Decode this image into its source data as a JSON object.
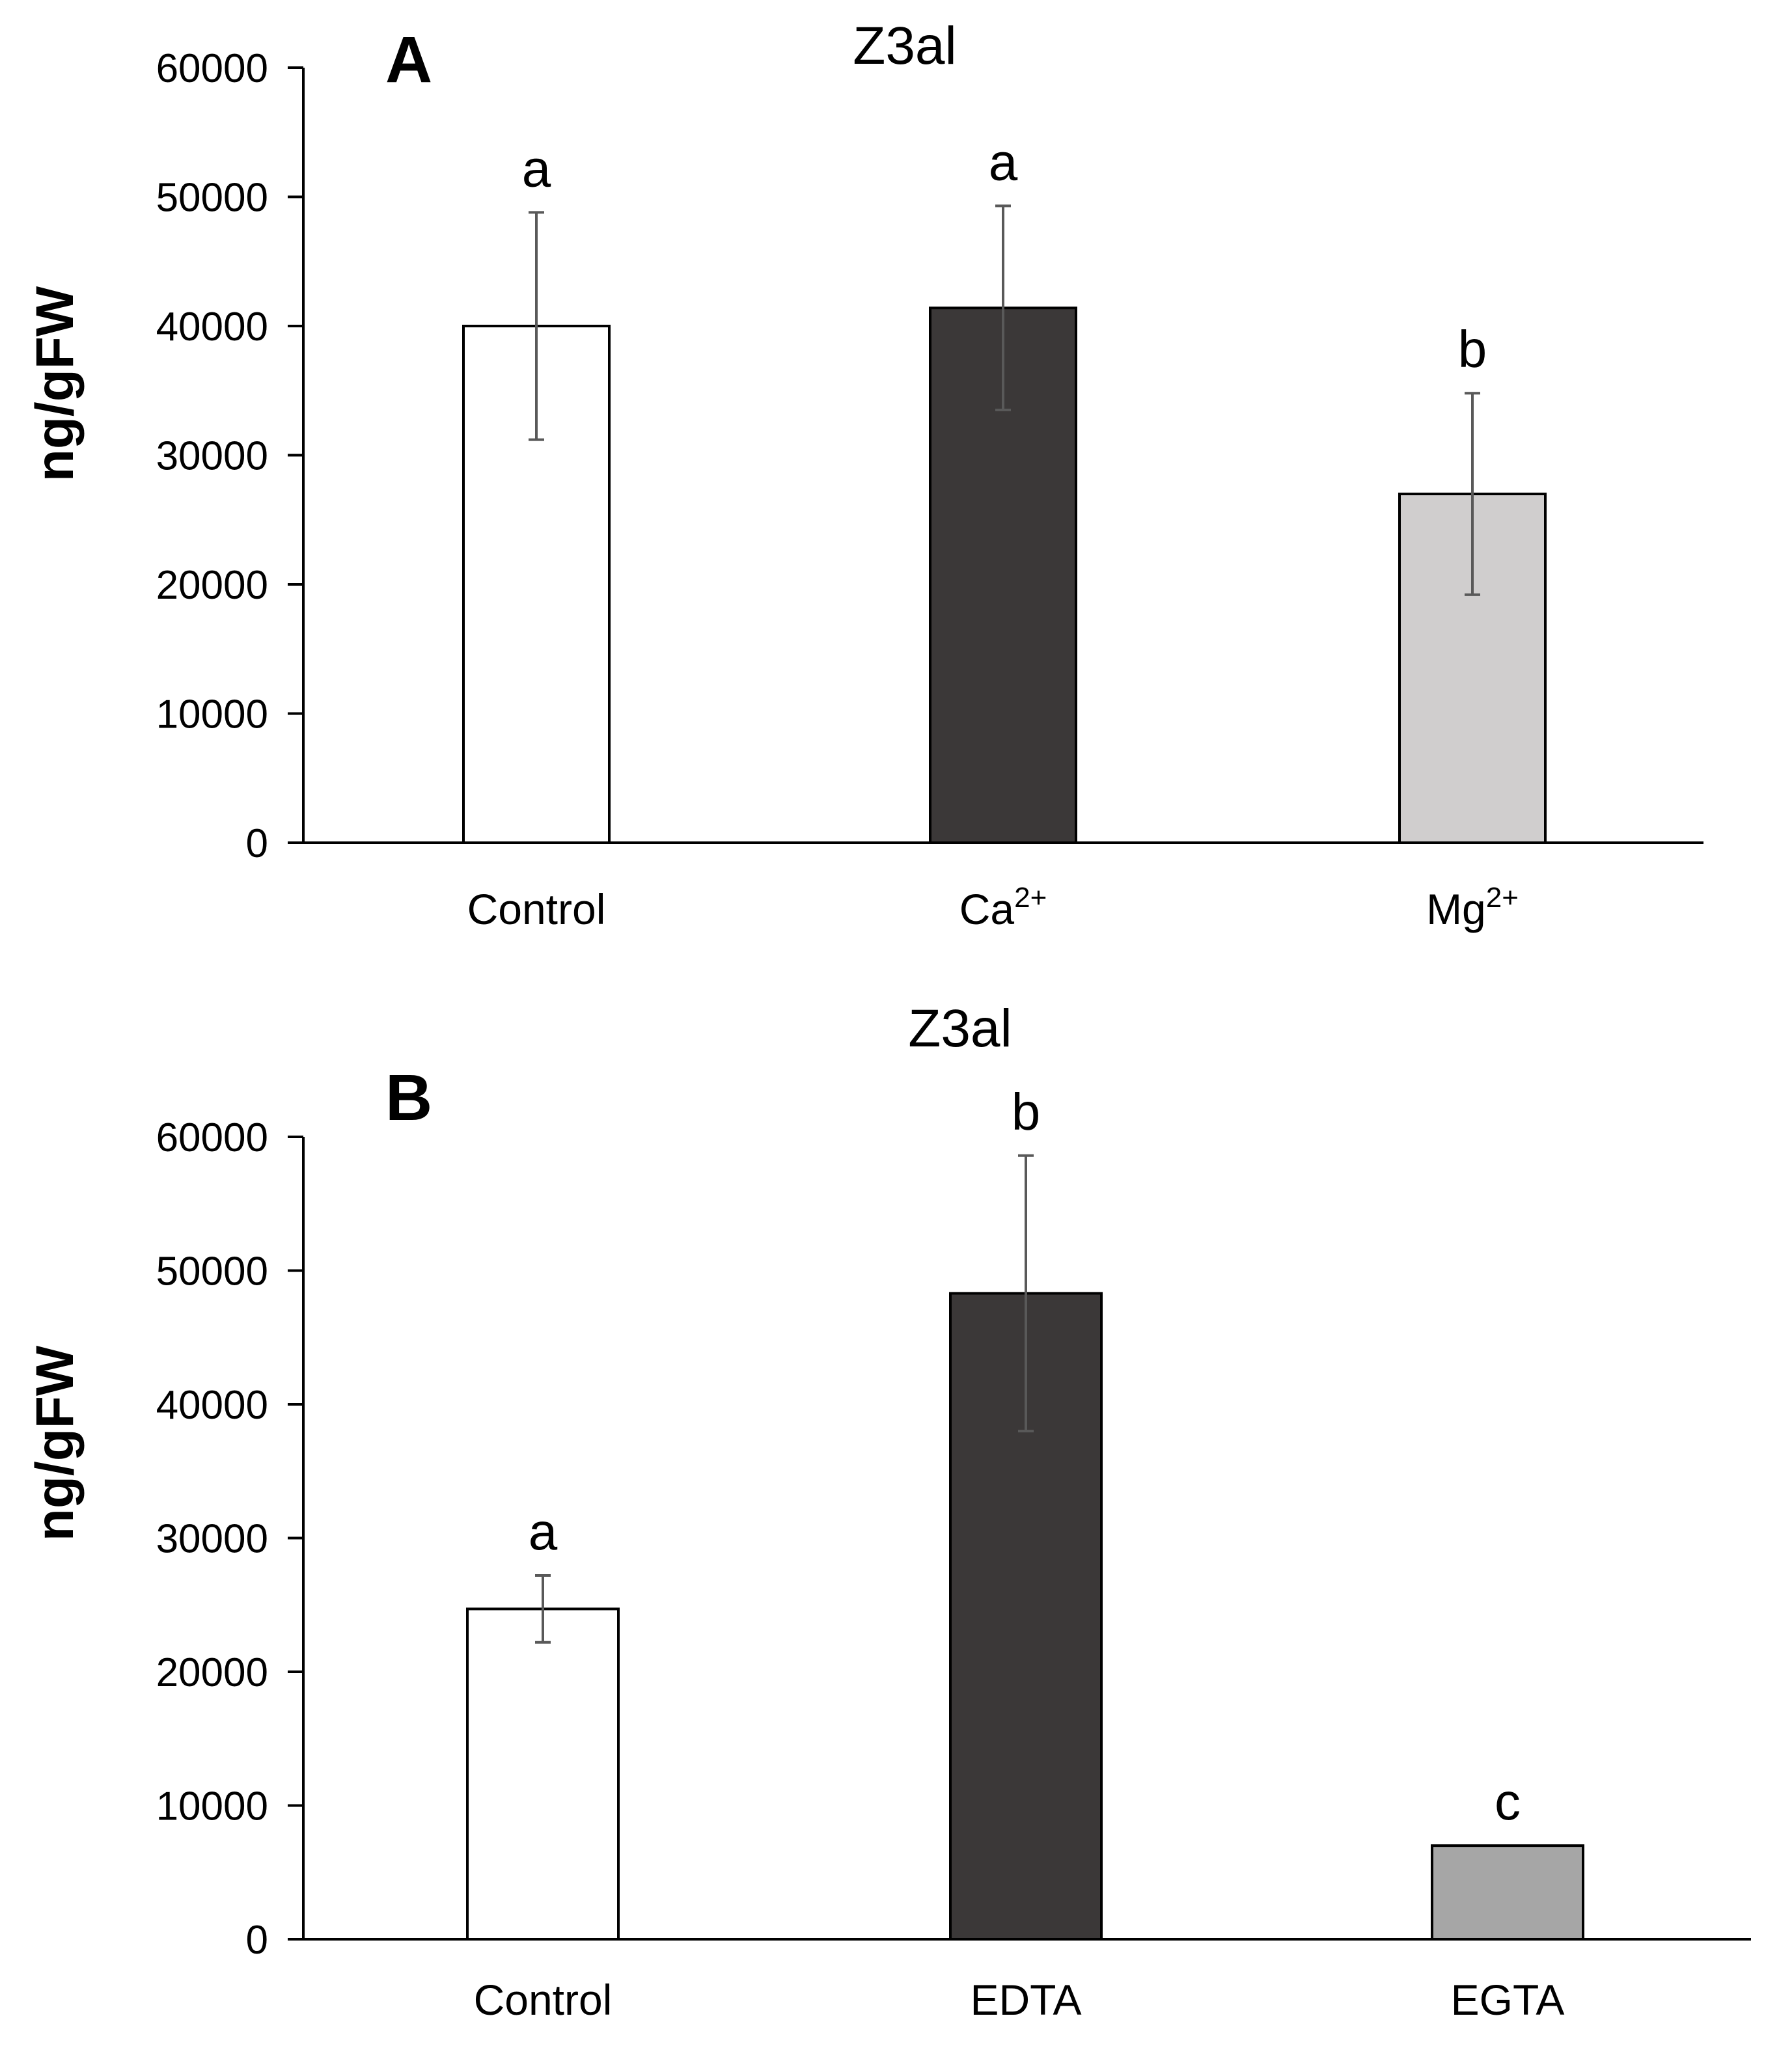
{
  "chart_data": [
    {
      "type": "bar",
      "panel": "A",
      "title": "Z3al",
      "ylabel": "ng/gFW",
      "xlabel": "",
      "ylim": [
        0,
        60000
      ],
      "yticks": [
        "0",
        "10000",
        "20000",
        "30000",
        "40000",
        "50000",
        "60000"
      ],
      "categories": [
        {
          "base": "Control",
          "sup": ""
        },
        {
          "base": "Ca",
          "sup": "2+"
        },
        {
          "base": "Mg",
          "sup": "2+"
        }
      ],
      "values": [
        40000,
        41400,
        27000
      ],
      "errors": [
        8800,
        7900,
        7800
      ],
      "significance": [
        "a",
        "a",
        "b"
      ],
      "colors": [
        "#ffffff",
        "#3b3838",
        "#d0cece"
      ]
    },
    {
      "type": "bar",
      "panel": "B",
      "title": "Z3al",
      "ylabel": "ng/gFW",
      "xlabel": "",
      "ylim": [
        0,
        60000
      ],
      "yticks": [
        "0",
        "10000",
        "20000",
        "30000",
        "40000",
        "50000",
        "60000"
      ],
      "categories": [
        {
          "base": "Control",
          "sup": ""
        },
        {
          "base": "EDTA",
          "sup": ""
        },
        {
          "base": "EGTA",
          "sup": ""
        }
      ],
      "values": [
        24700,
        48300,
        7000
      ],
      "errors": [
        2500,
        10300,
        0
      ],
      "significance": [
        "a",
        "b",
        "c"
      ],
      "colors": [
        "#ffffff",
        "#3b3838",
        "#a6a6a6"
      ]
    }
  ]
}
